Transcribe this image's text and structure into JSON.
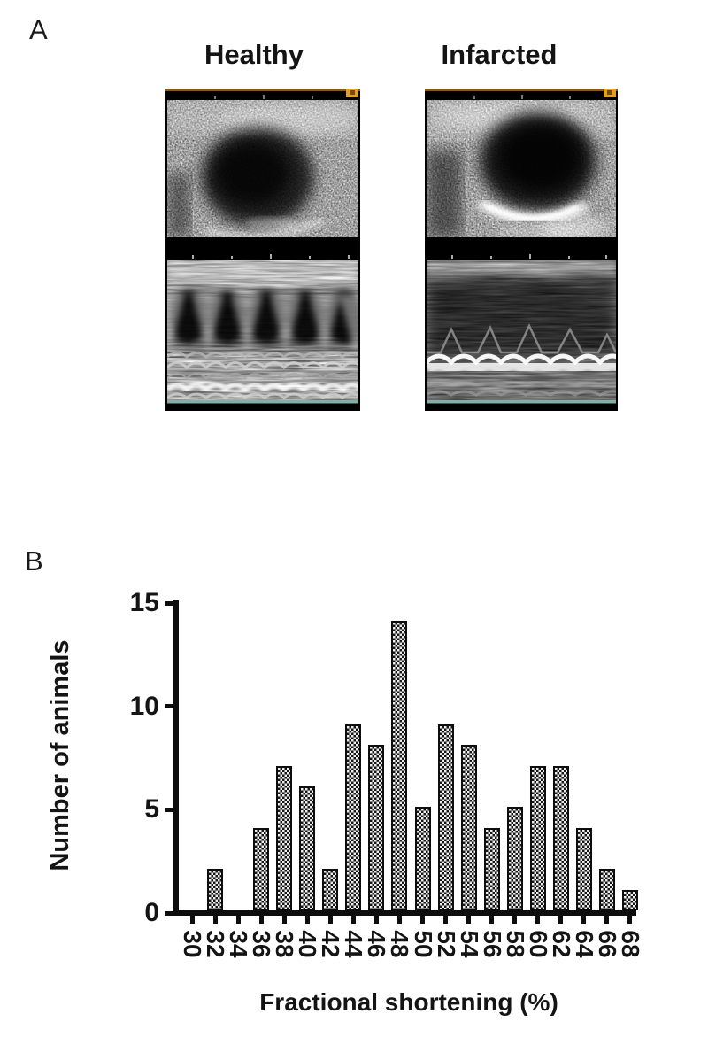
{
  "figure": {
    "panel_a_label": "A",
    "panel_b_label": "B",
    "healthy_label": "Healthy",
    "infarcted_label": "Infarcted",
    "colors": {
      "axis": "#0d0d0d",
      "orientation_marker_amber": "#dfa11f",
      "mmode_baseline_cyan": "#7fb0a9",
      "bar_fill_light": "#ededed",
      "bar_fill_dark": "#161616"
    }
  },
  "chart_data": {
    "type": "bar",
    "title": "",
    "xlabel": "Fractional shortening (%)",
    "ylabel": "Number of animals",
    "categories": [
      "30",
      "32",
      "34",
      "36",
      "38",
      "40",
      "42",
      "44",
      "46",
      "48",
      "50",
      "52",
      "54",
      "56",
      "58",
      "60",
      "62",
      "64",
      "66",
      "68"
    ],
    "values": [
      0,
      2,
      0,
      4,
      7,
      6,
      2,
      9,
      8,
      14,
      5,
      9,
      8,
      4,
      5,
      7,
      7,
      4,
      2,
      1
    ],
    "ylim": [
      0,
      15
    ],
    "yticks": [
      0,
      5,
      10,
      15
    ],
    "grid": false,
    "legend": null,
    "bar_pattern": "checkerboard"
  }
}
